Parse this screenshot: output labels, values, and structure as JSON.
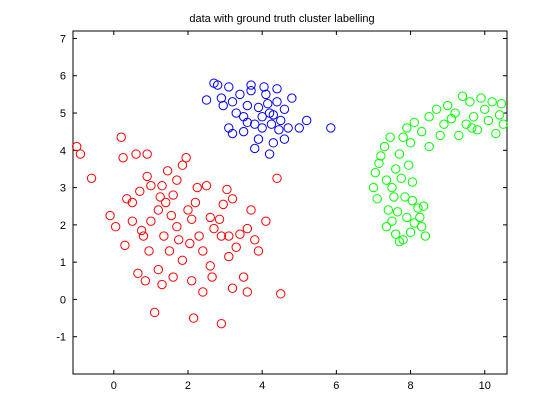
{
  "chart_data": {
    "type": "scatter",
    "title": "data with ground truth cluster labelling",
    "xlabel": "",
    "ylabel": "",
    "xlim": [
      -1.1,
      10.6
    ],
    "ylim": [
      -2,
      7.2
    ],
    "xticks": [
      0,
      2,
      4,
      6,
      8,
      10
    ],
    "yticks": [
      -1,
      0,
      1,
      2,
      3,
      4,
      5,
      6,
      7
    ],
    "grid": false,
    "legend": "none",
    "marker": "open-circle",
    "series": [
      {
        "color": "#ff0000",
        "points": [
          [
            -1.0,
            4.1
          ],
          [
            -0.9,
            3.9
          ],
          [
            -0.6,
            3.25
          ],
          [
            0.2,
            4.35
          ],
          [
            0.25,
            3.8
          ],
          [
            -0.1,
            2.25
          ],
          [
            0.05,
            1.95
          ],
          [
            0.3,
            1.45
          ],
          [
            0.5,
            2.1
          ],
          [
            0.5,
            2.6
          ],
          [
            0.7,
            2.9
          ],
          [
            0.9,
            3.3
          ],
          [
            0.6,
            3.9
          ],
          [
            1.0,
            3.05
          ],
          [
            1.3,
            3.05
          ],
          [
            1.4,
            2.6
          ],
          [
            1.2,
            2.4
          ],
          [
            1.0,
            2.1
          ],
          [
            0.8,
            1.7
          ],
          [
            0.95,
            1.3
          ],
          [
            0.65,
            0.7
          ],
          [
            0.85,
            0.5
          ],
          [
            1.2,
            0.8
          ],
          [
            1.3,
            0.4
          ],
          [
            1.5,
            1.3
          ],
          [
            1.7,
            1.95
          ],
          [
            1.75,
            1.6
          ],
          [
            1.85,
            1.05
          ],
          [
            1.6,
            0.6
          ],
          [
            1.1,
            -0.35
          ],
          [
            1.6,
            2.8
          ],
          [
            1.7,
            3.2
          ],
          [
            1.85,
            3.6
          ],
          [
            1.95,
            3.8
          ],
          [
            2.0,
            2.4
          ],
          [
            2.1,
            2.15
          ],
          [
            2.2,
            2.6
          ],
          [
            2.3,
            1.7
          ],
          [
            2.4,
            1.3
          ],
          [
            2.1,
            0.5
          ],
          [
            2.15,
            -0.5
          ],
          [
            2.4,
            0.2
          ],
          [
            2.6,
            0.9
          ],
          [
            2.7,
            1.9
          ],
          [
            2.85,
            2.15
          ],
          [
            2.95,
            2.55
          ],
          [
            3.05,
            2.95
          ],
          [
            3.2,
            2.7
          ],
          [
            3.1,
            1.7
          ],
          [
            3.3,
            1.4
          ],
          [
            3.2,
            0.3
          ],
          [
            3.5,
            0.6
          ],
          [
            3.6,
            1.9
          ],
          [
            3.7,
            2.4
          ],
          [
            3.8,
            1.6
          ],
          [
            3.9,
            1.3
          ],
          [
            3.6,
            0.2
          ],
          [
            2.9,
            -0.65
          ],
          [
            4.1,
            2.1
          ],
          [
            4.4,
            3.25
          ],
          [
            4.5,
            0.15
          ],
          [
            3.1,
            1.15
          ],
          [
            2.9,
            1.7
          ],
          [
            2.6,
            2.2
          ],
          [
            2.25,
            3.0
          ],
          [
            1.45,
            3.45
          ],
          [
            1.55,
            2.25
          ],
          [
            1.35,
            1.7
          ],
          [
            0.9,
            3.9
          ],
          [
            0.35,
            2.7
          ],
          [
            2.5,
            3.05
          ],
          [
            3.4,
            1.75
          ],
          [
            2.65,
            0.6
          ],
          [
            2.05,
            1.5
          ],
          [
            1.25,
            2.75
          ],
          [
            0.75,
            1.85
          ]
        ]
      },
      {
        "color": "#0000ff",
        "points": [
          [
            2.5,
            5.35
          ],
          [
            2.7,
            5.8
          ],
          [
            2.8,
            5.75
          ],
          [
            2.9,
            5.4
          ],
          [
            3.1,
            5.7
          ],
          [
            3.2,
            5.3
          ],
          [
            3.3,
            5.0
          ],
          [
            3.4,
            5.5
          ],
          [
            3.5,
            4.9
          ],
          [
            3.6,
            5.2
          ],
          [
            3.7,
            5.6
          ],
          [
            3.8,
            4.7
          ],
          [
            3.9,
            5.15
          ],
          [
            4.0,
            4.9
          ],
          [
            4.1,
            5.5
          ],
          [
            4.2,
            5.0
          ],
          [
            4.25,
            4.7
          ],
          [
            4.3,
            4.95
          ],
          [
            4.4,
            5.3
          ],
          [
            4.5,
            4.8
          ],
          [
            4.6,
            5.1
          ],
          [
            4.7,
            4.6
          ],
          [
            4.8,
            5.4
          ],
          [
            5.0,
            4.6
          ],
          [
            5.2,
            4.8
          ],
          [
            5.85,
            4.6
          ],
          [
            3.1,
            4.6
          ],
          [
            3.5,
            4.5
          ],
          [
            3.9,
            4.3
          ],
          [
            4.3,
            4.2
          ],
          [
            4.6,
            4.3
          ],
          [
            4.2,
            3.9
          ],
          [
            3.8,
            4.05
          ],
          [
            3.2,
            4.45
          ],
          [
            3.7,
            5.75
          ],
          [
            4.05,
            5.7
          ],
          [
            4.4,
            5.65
          ],
          [
            2.95,
            5.2
          ],
          [
            3.6,
            4.75
          ],
          [
            4.15,
            5.25
          ],
          [
            4.45,
            4.55
          ],
          [
            4.0,
            4.6
          ]
        ]
      },
      {
        "color": "#00ff00",
        "points": [
          [
            7.0,
            3.0
          ],
          [
            7.1,
            2.7
          ],
          [
            7.05,
            3.4
          ],
          [
            7.2,
            3.85
          ],
          [
            7.3,
            4.1
          ],
          [
            7.35,
            3.2
          ],
          [
            7.4,
            2.4
          ],
          [
            7.5,
            2.1
          ],
          [
            7.6,
            1.75
          ],
          [
            7.7,
            1.55
          ],
          [
            7.8,
            1.6
          ],
          [
            7.9,
            2.2
          ],
          [
            8.0,
            1.8
          ],
          [
            8.1,
            2.05
          ],
          [
            8.2,
            2.45
          ],
          [
            8.3,
            1.95
          ],
          [
            8.4,
            1.7
          ],
          [
            7.5,
            3.0
          ],
          [
            7.6,
            3.5
          ],
          [
            7.7,
            3.9
          ],
          [
            7.8,
            4.35
          ],
          [
            7.9,
            4.6
          ],
          [
            8.0,
            4.2
          ],
          [
            8.1,
            4.75
          ],
          [
            8.3,
            4.5
          ],
          [
            8.5,
            4.9
          ],
          [
            8.7,
            5.1
          ],
          [
            8.9,
            4.7
          ],
          [
            9.0,
            5.2
          ],
          [
            9.2,
            5.0
          ],
          [
            9.4,
            5.45
          ],
          [
            9.6,
            5.3
          ],
          [
            9.7,
            4.9
          ],
          [
            9.9,
            5.4
          ],
          [
            10.0,
            5.1
          ],
          [
            10.1,
            4.8
          ],
          [
            10.2,
            5.3
          ],
          [
            10.4,
            4.95
          ],
          [
            10.5,
            4.7
          ],
          [
            10.3,
            4.45
          ],
          [
            9.8,
            4.55
          ],
          [
            9.5,
            4.7
          ],
          [
            9.3,
            4.4
          ],
          [
            8.8,
            4.4
          ],
          [
            8.5,
            4.1
          ],
          [
            7.75,
            3.25
          ],
          [
            7.85,
            2.75
          ],
          [
            7.65,
            2.35
          ],
          [
            8.05,
            2.65
          ],
          [
            8.25,
            2.2
          ],
          [
            7.35,
            1.95
          ],
          [
            7.15,
            3.65
          ],
          [
            7.45,
            4.35
          ],
          [
            7.95,
            3.6
          ],
          [
            8.05,
            3.15
          ],
          [
            7.55,
            2.75
          ],
          [
            8.35,
            2.5
          ],
          [
            9.1,
            4.85
          ],
          [
            10.45,
            5.25
          ],
          [
            9.65,
            4.6
          ]
        ]
      }
    ]
  }
}
